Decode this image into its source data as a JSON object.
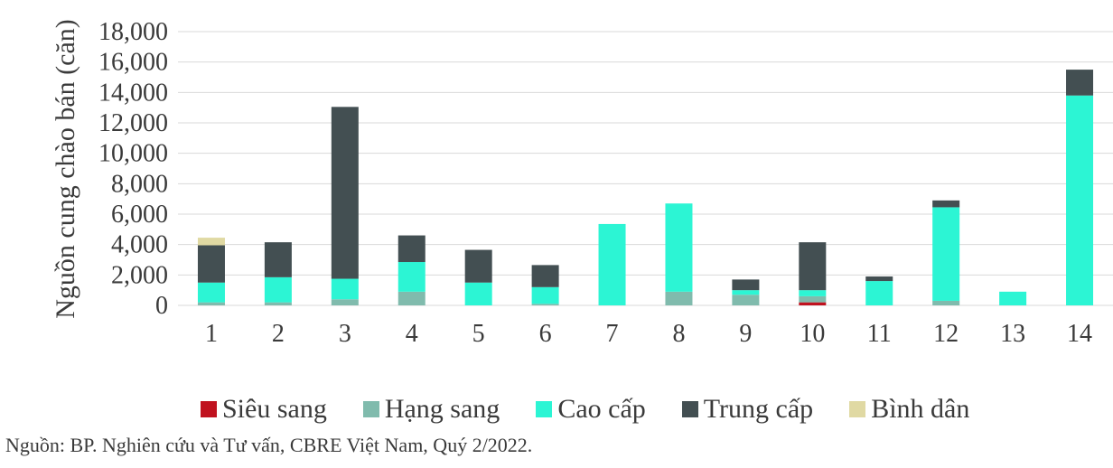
{
  "chart_data": {
    "type": "bar",
    "stacked": true,
    "categories": [
      "1",
      "2",
      "3",
      "4",
      "5",
      "6",
      "7",
      "8",
      "9",
      "10",
      "11",
      "12",
      "13",
      "14"
    ],
    "ylabel": "Nguồn cung chào bán (căn)",
    "ylim": [
      0,
      18000
    ],
    "yticks": [
      0,
      2000,
      4000,
      6000,
      8000,
      10000,
      12000,
      14000,
      16000,
      18000
    ],
    "ytick_labels": [
      "0",
      "2,000",
      "4,000",
      "6,000",
      "8,000",
      "10,000",
      "12,000",
      "14,000",
      "16,000",
      "18,000"
    ],
    "grid": true,
    "legend_position": "bottom",
    "series": [
      {
        "name": "Siêu sang",
        "color": "#c0121f",
        "values": [
          0,
          0,
          0,
          0,
          0,
          0,
          0,
          0,
          0,
          200,
          0,
          0,
          0,
          0
        ]
      },
      {
        "name": "Hạng sang",
        "color": "#80bbad",
        "values": [
          200,
          200,
          400,
          900,
          0,
          100,
          0,
          900,
          700,
          400,
          0,
          300,
          0,
          0
        ]
      },
      {
        "name": "Cao cấp",
        "color": "#2cf5d4",
        "values": [
          1300,
          1650,
          1350,
          1950,
          1500,
          1100,
          5350,
          5800,
          300,
          400,
          1600,
          6150,
          900,
          13800
        ]
      },
      {
        "name": "Trung cấp",
        "color": "#434f52",
        "values": [
          2450,
          2300,
          11300,
          1750,
          2150,
          1450,
          0,
          0,
          700,
          3150,
          300,
          450,
          0,
          1700
        ]
      },
      {
        "name": "Bình dân",
        "color": "#e0d9a3",
        "values": [
          500,
          0,
          0,
          0,
          0,
          0,
          0,
          0,
          0,
          0,
          0,
          0,
          0,
          0
        ]
      }
    ]
  },
  "source_note": "Nguồn: BP. Nghiên cứu và Tư vấn, CBRE Việt Nam, Quý 2/2022."
}
